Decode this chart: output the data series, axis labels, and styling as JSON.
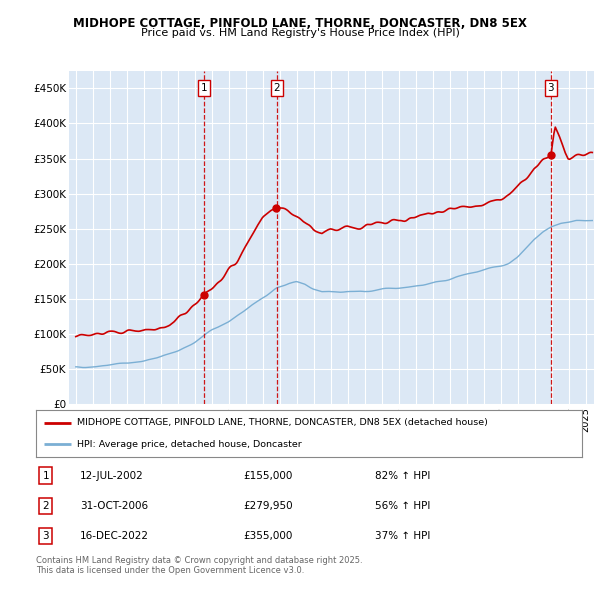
{
  "title1": "MIDHOPE COTTAGE, PINFOLD LANE, THORNE, DONCASTER, DN8 5EX",
  "title2": "Price paid vs. HM Land Registry's House Price Index (HPI)",
  "ylim": [
    0,
    475000
  ],
  "yticks": [
    0,
    50000,
    100000,
    150000,
    200000,
    250000,
    300000,
    350000,
    400000,
    450000
  ],
  "ytick_labels": [
    "£0",
    "£50K",
    "£100K",
    "£150K",
    "£200K",
    "£250K",
    "£300K",
    "£350K",
    "£400K",
    "£450K"
  ],
  "xlim_start": 1994.6,
  "xlim_end": 2025.5,
  "sale_dates": [
    2002.53,
    2006.83,
    2022.96
  ],
  "sale_prices": [
    155000,
    279950,
    355000
  ],
  "sale_labels": [
    "1",
    "2",
    "3"
  ],
  "sale_date_labels": [
    "12-JUL-2002",
    "31-OCT-2006",
    "16-DEC-2022"
  ],
  "sale_price_labels": [
    "£155,000",
    "£279,950",
    "£355,000"
  ],
  "sale_hpi_labels": [
    "82% ↑ HPI",
    "56% ↑ HPI",
    "37% ↑ HPI"
  ],
  "line_color_red": "#cc0000",
  "line_color_blue": "#7bafd4",
  "plot_bg_color": "#dce8f5",
  "grid_color": "#ffffff",
  "legend_label_red": "MIDHOPE COTTAGE, PINFOLD LANE, THORNE, DONCASTER, DN8 5EX (detached house)",
  "legend_label_blue": "HPI: Average price, detached house, Doncaster",
  "footer": "Contains HM Land Registry data © Crown copyright and database right 2025.\nThis data is licensed under the Open Government Licence v3.0."
}
